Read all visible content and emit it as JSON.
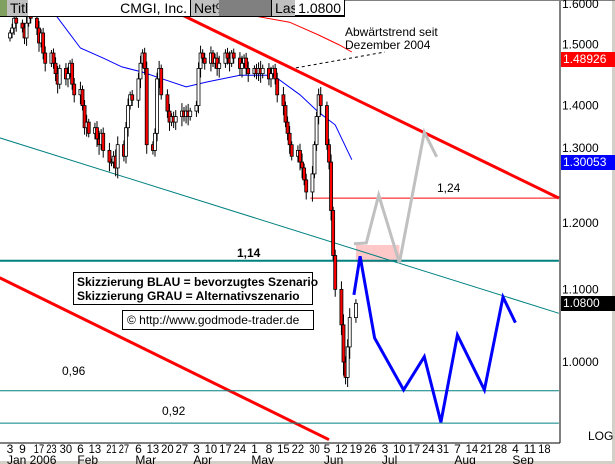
{
  "header": {
    "title_label": "Title",
    "title_value": "CMGI, Inc.",
    "net_label": "Net%",
    "net_value": "",
    "last_label": "Last",
    "last_value": "1.0800"
  },
  "price_tags": [
    {
      "value": "1.48926",
      "price": 1.48926,
      "color": "#ff0000"
    },
    {
      "value": "1.30053",
      "price": 1.30053,
      "color": "#0000ff"
    },
    {
      "value": "1.0800",
      "price": 1.08,
      "color": "#000000"
    }
  ],
  "annotations": {
    "downtrend_line1": "Abwärtstrend seit",
    "downtrend_line2": "Dezember 2004",
    "level_124": "1,24",
    "level_114": "1,14",
    "level_096": "0,96",
    "level_092": "0,92",
    "legend_blue": "Skizzierung BLAU = bevorzugtes Szenario",
    "legend_gray": "Skizzierung GRAU = Alternativszenario",
    "copyright": "© http://www.godmode-trader.de"
  },
  "chart_data": {
    "type": "candlestick",
    "title": "CMGI, Inc.",
    "scale": "log",
    "scale_label": "LOG",
    "ylim": [
      0.9,
      1.6
    ],
    "y_ticks": [
      "1.6000",
      "1.5000",
      "1.4000",
      "1.3000",
      "1.2000",
      "1.1000",
      "1.0000"
    ],
    "y_tick_values": [
      1.6,
      1.5,
      1.4,
      1.3,
      1.2,
      1.1,
      1.0
    ],
    "x_start": "2006-01-03",
    "x_ticks": [
      {
        "date": "2006-01-03",
        "label": "3"
      },
      {
        "date": "2006-01-09",
        "label": "9"
      },
      {
        "date": "2006-01-17",
        "label": "17"
      },
      {
        "date": "2006-01-23",
        "label": "23"
      },
      {
        "date": "2006-01-30",
        "label": "30"
      },
      {
        "date": "2006-02-06",
        "label": "6"
      },
      {
        "date": "2006-02-13",
        "label": "13"
      },
      {
        "date": "2006-02-21",
        "label": "21"
      },
      {
        "date": "2006-02-27",
        "label": "27"
      },
      {
        "date": "2006-03-06",
        "label": "6"
      },
      {
        "date": "2006-03-13",
        "label": "13"
      },
      {
        "date": "2006-03-20",
        "label": "20"
      },
      {
        "date": "2006-03-27",
        "label": "27"
      },
      {
        "date": "2006-04-03",
        "label": "3"
      },
      {
        "date": "2006-04-10",
        "label": "10"
      },
      {
        "date": "2006-04-17",
        "label": "17"
      },
      {
        "date": "2006-04-24",
        "label": "24"
      },
      {
        "date": "2006-05-01",
        "label": "1"
      },
      {
        "date": "2006-05-08",
        "label": "8"
      },
      {
        "date": "2006-05-15",
        "label": "15"
      },
      {
        "date": "2006-05-22",
        "label": "22"
      },
      {
        "date": "2006-05-30",
        "label": "30"
      },
      {
        "date": "2006-06-05",
        "label": "5"
      },
      {
        "date": "2006-06-12",
        "label": "12"
      },
      {
        "date": "2006-06-19",
        "label": "19"
      },
      {
        "date": "2006-06-26",
        "label": "26"
      },
      {
        "date": "2006-07-03",
        "label": "3"
      },
      {
        "date": "2006-07-10",
        "label": "10"
      },
      {
        "date": "2006-07-17",
        "label": "17"
      },
      {
        "date": "2006-07-24",
        "label": "24"
      },
      {
        "date": "2006-07-31",
        "label": "31"
      },
      {
        "date": "2006-08-07",
        "label": "7"
      },
      {
        "date": "2006-08-14",
        "label": "14"
      },
      {
        "date": "2006-08-21",
        "label": "21"
      },
      {
        "date": "2006-08-28",
        "label": "28"
      },
      {
        "date": "2006-09-04",
        "label": "4"
      },
      {
        "date": "2006-09-11",
        "label": "11"
      },
      {
        "date": "2006-09-18",
        "label": "18"
      }
    ],
    "month_labels": [
      {
        "date": "2006-01-03",
        "label": "Jan 2006"
      },
      {
        "date": "2006-02-06",
        "label": "Feb"
      },
      {
        "date": "2006-03-06",
        "label": "Mar"
      },
      {
        "date": "2006-04-03",
        "label": "Apr"
      },
      {
        "date": "2006-05-01",
        "label": "May"
      },
      {
        "date": "2006-06-05",
        "label": "Jun"
      },
      {
        "date": "2006-07-03",
        "label": "Jul"
      },
      {
        "date": "2006-08-07",
        "label": "Aug"
      },
      {
        "date": "2006-09-04",
        "label": "Sep"
      }
    ],
    "closes": [
      1.54,
      1.55,
      1.57,
      1.56,
      1.55,
      1.53,
      1.56,
      1.58,
      1.57,
      1.55,
      1.52,
      1.54,
      1.5,
      1.48,
      1.5,
      1.48,
      1.46,
      1.44,
      1.47,
      1.45,
      1.46,
      1.48,
      1.44,
      1.42,
      1.43,
      1.4,
      1.36,
      1.37,
      1.35,
      1.36,
      1.34,
      1.33,
      1.35,
      1.32,
      1.3,
      1.3,
      1.31,
      1.29,
      1.33,
      1.31,
      1.36,
      1.4,
      1.42,
      1.41,
      1.45,
      1.48,
      1.5,
      1.47,
      1.33,
      1.32,
      1.35,
      1.45,
      1.47,
      1.42,
      1.39,
      1.37,
      1.38,
      1.37,
      1.38,
      1.39,
      1.38,
      1.39,
      1.38,
      1.39,
      1.4,
      1.47,
      1.5,
      1.49,
      1.48,
      1.5,
      1.48,
      1.49,
      1.47,
      1.48,
      1.5,
      1.49,
      1.48,
      1.5,
      1.49,
      1.47,
      1.48,
      1.49,
      1.47,
      1.46,
      1.47,
      1.46,
      1.47,
      1.46,
      1.47,
      1.45,
      1.46,
      1.47,
      1.45,
      1.42,
      1.4,
      1.37,
      1.35,
      1.33,
      1.31,
      1.32,
      1.3,
      1.29,
      1.27,
      1.25,
      1.28,
      1.33,
      1.38,
      1.42,
      1.4,
      1.33,
      1.3,
      1.22,
      1.15,
      1.1,
      1.05,
      1.0,
      0.98,
      1.02,
      1.06,
      1.08
    ],
    "moving_average_blue": [
      [
        "2006-01-25",
        1.577
      ],
      [
        "2006-02-06",
        1.51
      ],
      [
        "2006-02-17",
        1.49
      ],
      [
        "2006-02-26",
        1.473
      ],
      [
        "2006-03-08",
        1.463
      ],
      [
        "2006-03-16",
        1.452
      ],
      [
        "2006-03-29",
        1.435
      ],
      [
        "2006-04-08",
        1.444
      ],
      [
        "2006-04-24",
        1.457
      ],
      [
        "2006-05-10",
        1.457
      ],
      [
        "2006-05-23",
        1.42
      ],
      [
        "2006-06-01",
        1.388
      ],
      [
        "2006-06-09",
        1.365
      ],
      [
        "2006-06-17",
        1.304
      ]
    ],
    "moving_average_red": [
      [
        "2006-04-28",
        1.577
      ],
      [
        "2006-05-18",
        1.562
      ],
      [
        "2006-06-01",
        1.536
      ],
      [
        "2006-06-11",
        1.516
      ],
      [
        "2006-06-17",
        1.502
      ]
    ],
    "trendlines": [
      {
        "name": "downtrend",
        "color": "#ff0000",
        "width": 3,
        "points": [
          [
            "2006-03-27",
            1.577
          ],
          [
            "2006-09-25",
            1.24
          ]
        ]
      },
      {
        "name": "lower-red",
        "color": "#ff0000",
        "width": 3,
        "points": [
          [
            "2005-12-29",
            1.117
          ],
          [
            "2006-06-06",
            0.903
          ]
        ]
      },
      {
        "name": "teal-diagonal",
        "color": "#008080",
        "width": 1,
        "points": [
          [
            "2005-12-29",
            1.342
          ],
          [
            "2006-09-25",
            1.066
          ]
        ]
      },
      {
        "name": "level-1.14",
        "color": "#008080",
        "width": 2,
        "points": [
          [
            "2005-12-29",
            1.142
          ],
          [
            "2006-09-25",
            1.142
          ]
        ]
      },
      {
        "name": "level-0.96",
        "color": "#008080",
        "width": 1,
        "points": [
          [
            "2005-12-29",
            0.963
          ],
          [
            "2006-09-25",
            0.963
          ]
        ]
      },
      {
        "name": "level-0.92",
        "color": "#008080",
        "width": 1,
        "points": [
          [
            "2005-12-29",
            0.923
          ],
          [
            "2006-09-25",
            0.923
          ]
        ]
      },
      {
        "name": "level-1.24",
        "color": "#ff0000",
        "width": 1,
        "points": [
          [
            "2006-05-28",
            1.24
          ],
          [
            "2006-09-25",
            1.24
          ]
        ]
      }
    ],
    "annotation_connector": [
      [
        "2006-05-21",
        1.471
      ],
      [
        "2006-07-03",
        1.502
      ]
    ],
    "target_zone": {
      "from": "2006-06-19",
      "to": "2006-07-10",
      "low": 1.14,
      "high": 1.166,
      "color": "#ffc8c8"
    },
    "scenario_blue": [
      [
        "2006-06-18",
        1.092
      ],
      [
        "2006-06-21",
        1.149
      ],
      [
        "2006-06-28",
        1.032
      ],
      [
        "2006-07-12",
        0.964
      ],
      [
        "2006-07-22",
        1.007
      ],
      [
        "2006-07-30",
        0.924
      ],
      [
        "2006-08-07",
        1.036
      ],
      [
        "2006-08-20",
        0.964
      ],
      [
        "2006-08-29",
        1.089
      ],
      [
        "2006-09-04",
        1.053
      ]
    ],
    "scenario_gray": [
      [
        "2006-06-18",
        1.168
      ],
      [
        "2006-06-24",
        1.169
      ],
      [
        "2006-06-30",
        1.245
      ],
      [
        "2006-07-10",
        1.139
      ],
      [
        "2006-07-22",
        1.352
      ],
      [
        "2006-07-28",
        1.309
      ]
    ]
  }
}
